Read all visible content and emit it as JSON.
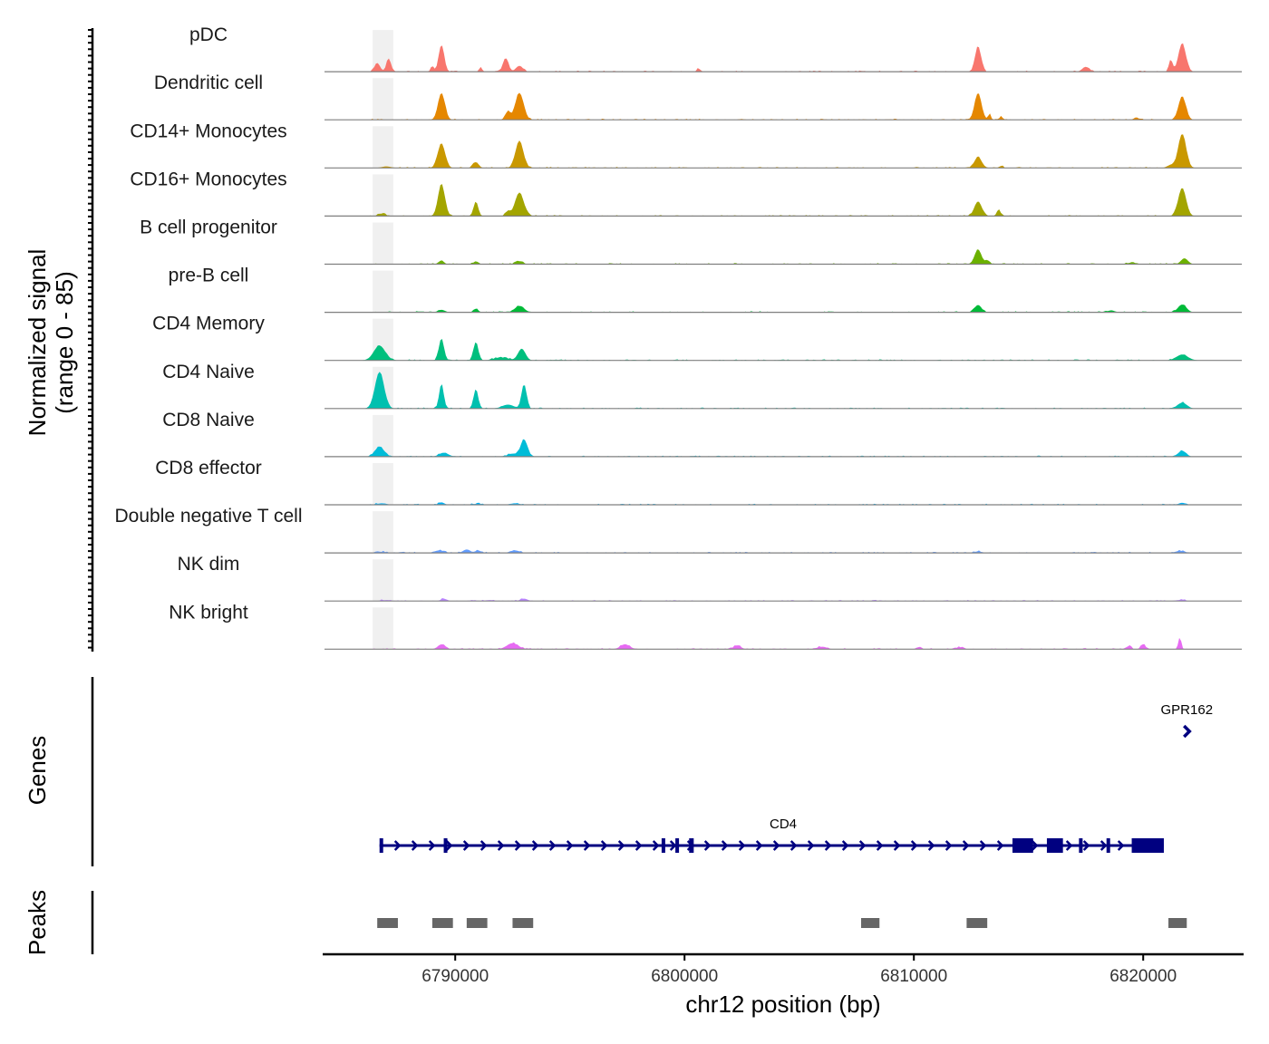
{
  "chart_data": {
    "type": "area",
    "title": "",
    "region": {
      "chrom": "chr12",
      "start": 6784300,
      "end": 6824300
    },
    "xlabel": "chr12 position (bp)",
    "ylabel_line1": "Normalized signal",
    "ylabel_line2": "(range 0 - 85)",
    "ylim": [
      0,
      85
    ],
    "x_ticks": [
      6790000,
      6800000,
      6810000,
      6820000
    ],
    "x_tick_labels": [
      "6790000",
      "6800000",
      "6810000",
      "6820000"
    ],
    "highlight": {
      "start": 6786400,
      "end": 6787300,
      "color": "#f0f0f0"
    },
    "tracks": [
      {
        "name": "pDC",
        "color": "#F8766D",
        "peaks": [
          [
            6786600,
            18,
            120
          ],
          [
            6787100,
            27,
            100
          ],
          [
            6789400,
            55,
            120
          ],
          [
            6789000,
            12,
            50
          ],
          [
            6792200,
            28,
            120
          ],
          [
            6792800,
            12,
            150
          ],
          [
            6791100,
            9,
            60
          ],
          [
            6800600,
            8,
            60
          ],
          [
            6812800,
            52,
            130
          ],
          [
            6817500,
            10,
            150
          ],
          [
            6821700,
            58,
            160
          ],
          [
            6821200,
            25,
            80
          ]
        ]
      },
      {
        "name": "Dendritic cell",
        "color": "#E58700",
        "peaks": [
          [
            6789400,
            55,
            150
          ],
          [
            6792800,
            55,
            180
          ],
          [
            6792300,
            18,
            100
          ],
          [
            6812800,
            55,
            150
          ],
          [
            6813300,
            12,
            60
          ],
          [
            6813800,
            8,
            60
          ],
          [
            6821700,
            48,
            160
          ],
          [
            6819700,
            5,
            100
          ]
        ]
      },
      {
        "name": "CD14+ Monocytes",
        "color": "#C99800",
        "peaks": [
          [
            6789400,
            50,
            160
          ],
          [
            6790900,
            12,
            120
          ],
          [
            6792800,
            56,
            170
          ],
          [
            6787000,
            3,
            200
          ],
          [
            6812800,
            22,
            160
          ],
          [
            6813800,
            4,
            80
          ],
          [
            6821700,
            70,
            170
          ],
          [
            6821200,
            6,
            150
          ]
        ]
      },
      {
        "name": "CD16+ Monocytes",
        "color": "#A3A500",
        "peaks": [
          [
            6789400,
            65,
            150
          ],
          [
            6790900,
            30,
            100
          ],
          [
            6792800,
            48,
            190
          ],
          [
            6792300,
            10,
            100
          ],
          [
            6812800,
            30,
            160
          ],
          [
            6813700,
            14,
            80
          ],
          [
            6821700,
            58,
            170
          ],
          [
            6786800,
            5,
            150
          ]
        ]
      },
      {
        "name": "B cell progenitor",
        "color": "#6BB100",
        "peaks": [
          [
            6789400,
            8,
            100
          ],
          [
            6790900,
            6,
            100
          ],
          [
            6792800,
            6,
            150
          ],
          [
            6812800,
            30,
            150
          ],
          [
            6813200,
            8,
            80
          ],
          [
            6821800,
            12,
            150
          ],
          [
            6819500,
            3,
            200
          ]
        ]
      },
      {
        "name": "pre-B cell",
        "color": "#00BA38",
        "peaks": [
          [
            6789400,
            5,
            150
          ],
          [
            6790900,
            7,
            100
          ],
          [
            6792800,
            13,
            200
          ],
          [
            6812800,
            15,
            150
          ],
          [
            6821700,
            16,
            180
          ],
          [
            6818600,
            4,
            150
          ]
        ]
      },
      {
        "name": "CD4 Memory",
        "color": "#00BF7D",
        "peaks": [
          [
            6786700,
            30,
            250
          ],
          [
            6789400,
            45,
            110
          ],
          [
            6790900,
            38,
            100
          ],
          [
            6792900,
            24,
            160
          ],
          [
            6792000,
            6,
            300
          ],
          [
            6821700,
            12,
            250
          ]
        ]
      },
      {
        "name": "CD4 Naive",
        "color": "#00C0AF",
        "peaks": [
          [
            6786700,
            75,
            200
          ],
          [
            6789400,
            50,
            100
          ],
          [
            6790900,
            40,
            100
          ],
          [
            6793000,
            50,
            110
          ],
          [
            6792300,
            8,
            250
          ],
          [
            6821700,
            12,
            200
          ]
        ]
      },
      {
        "name": "CD8 Naive",
        "color": "#00BCD8",
        "peaks": [
          [
            6786700,
            20,
            200
          ],
          [
            6789500,
            8,
            200
          ],
          [
            6792500,
            6,
            200
          ],
          [
            6793000,
            35,
            150
          ],
          [
            6821700,
            12,
            170
          ]
        ]
      },
      {
        "name": "CD8 effector",
        "color": "#00B0F6",
        "peaks": [
          [
            6786800,
            3,
            200
          ],
          [
            6789400,
            5,
            120
          ],
          [
            6791000,
            2,
            200
          ],
          [
            6792600,
            3,
            200
          ],
          [
            6821700,
            4,
            150
          ]
        ]
      },
      {
        "name": "Double negative T cell",
        "color": "#619CFF",
        "peaks": [
          [
            6789300,
            5,
            200
          ],
          [
            6790500,
            7,
            150
          ],
          [
            6791000,
            5,
            120
          ],
          [
            6792600,
            5,
            200
          ],
          [
            6812800,
            3,
            150
          ],
          [
            6821600,
            4,
            200
          ],
          [
            6786800,
            2,
            200
          ]
        ]
      },
      {
        "name": "NK dim",
        "color": "#B983FF",
        "peaks": [
          [
            6789500,
            5,
            120
          ],
          [
            6793000,
            5,
            150
          ],
          [
            6787000,
            2,
            200
          ],
          [
            6791500,
            2,
            200
          ],
          [
            6821600,
            2,
            200
          ]
        ]
      },
      {
        "name": "NK bright",
        "color": "#E76BF3",
        "peaks": [
          [
            6789400,
            10,
            150
          ],
          [
            6792500,
            12,
            250
          ],
          [
            6797400,
            10,
            200
          ],
          [
            6802300,
            8,
            150
          ],
          [
            6806000,
            5,
            200
          ],
          [
            6810200,
            4,
            100
          ],
          [
            6812000,
            4,
            150
          ],
          [
            6819400,
            8,
            80
          ],
          [
            6820000,
            10,
            100
          ],
          [
            6821600,
            25,
            60
          ]
        ]
      }
    ],
    "genes_track": {
      "label": "Genes",
      "color": "#000080",
      "genes": [
        {
          "name": "CD4",
          "start": 6786700,
          "end": 6820900,
          "strand": "+",
          "exons": [
            [
              6786700,
              6786800
            ],
            [
              6789500,
              6789600
            ],
            [
              6799000,
              6799150
            ],
            [
              6799600,
              6799650
            ],
            [
              6800200,
              6800400
            ],
            [
              6814300,
              6815200
            ],
            [
              6815800,
              6816500
            ],
            [
              6817200,
              6817300
            ],
            [
              6818400,
              6818500
            ],
            [
              6819500,
              6820900
            ]
          ]
        },
        {
          "name": "GPR162",
          "start": 6821900,
          "end": 6822000,
          "strand": "+",
          "exons": []
        }
      ]
    },
    "peaks_track": {
      "label": "Peaks",
      "color": "#666666",
      "regions": [
        [
          6786600,
          6787500
        ],
        [
          6789000,
          6789900
        ],
        [
          6790500,
          6791400
        ],
        [
          6792500,
          6793400
        ],
        [
          6807700,
          6808500
        ],
        [
          6812300,
          6813200
        ],
        [
          6821100,
          6821900
        ]
      ]
    }
  }
}
